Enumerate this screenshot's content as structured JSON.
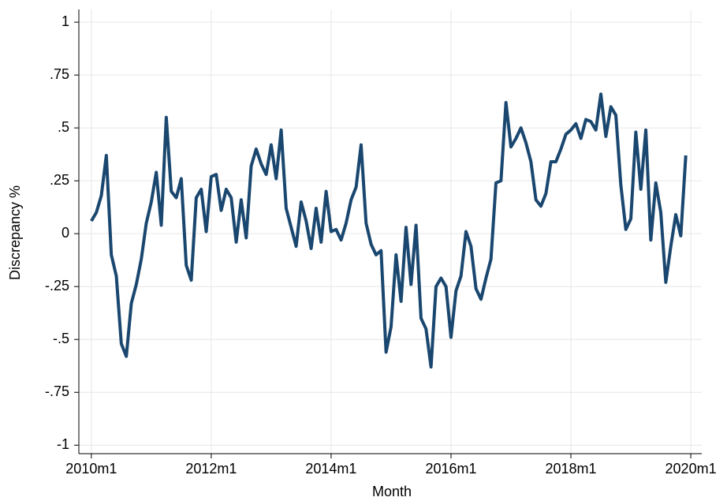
{
  "chart_data": {
    "type": "line",
    "xlabel": "Month",
    "ylabel": "Discrepancy %",
    "x": [
      600,
      601,
      602,
      603,
      604,
      605,
      606,
      607,
      608,
      609,
      610,
      611,
      612,
      613,
      614,
      615,
      616,
      617,
      618,
      619,
      620,
      621,
      622,
      623,
      624,
      625,
      626,
      627,
      628,
      629,
      630,
      631,
      632,
      633,
      634,
      635,
      636,
      637,
      638,
      639,
      640,
      641,
      642,
      643,
      644,
      645,
      646,
      647,
      648,
      649,
      650,
      651,
      652,
      653,
      654,
      655,
      656,
      657,
      658,
      659,
      660,
      661,
      662,
      663,
      664,
      665,
      666,
      667,
      668,
      669,
      670,
      671,
      672,
      673,
      674,
      675,
      676,
      677,
      678,
      679,
      680,
      681,
      682,
      683,
      684,
      685,
      686,
      687,
      688,
      689,
      690,
      691,
      692,
      693,
      694,
      695,
      696,
      697,
      698,
      699,
      700,
      701,
      702,
      703,
      704,
      705,
      706,
      707,
      708,
      709,
      710,
      711,
      712,
      713,
      714,
      715,
      716,
      717,
      718,
      719
    ],
    "series": [
      {
        "color": "#1a476f",
        "values": [
          0.06,
          0.1,
          0.18,
          0.37,
          -0.1,
          -0.2,
          -0.52,
          -0.58,
          -0.33,
          -0.24,
          -0.12,
          0.05,
          0.15,
          0.29,
          0.04,
          0.55,
          0.2,
          0.17,
          0.26,
          -0.15,
          -0.22,
          0.17,
          0.21,
          0.01,
          0.27,
          0.28,
          0.11,
          0.21,
          0.17,
          -0.04,
          0.16,
          -0.02,
          0.32,
          0.4,
          0.33,
          0.28,
          0.42,
          0.26,
          0.49,
          0.12,
          0.03,
          -0.06,
          0.15,
          0.06,
          -0.07,
          0.12,
          -0.04,
          0.2,
          0.01,
          0.02,
          -0.03,
          0.05,
          0.16,
          0.22,
          0.42,
          0.05,
          -0.05,
          -0.1,
          -0.08,
          -0.56,
          -0.44,
          -0.1,
          -0.32,
          0.03,
          -0.24,
          0.04,
          -0.4,
          -0.45,
          -0.63,
          -0.25,
          -0.21,
          -0.25,
          -0.49,
          -0.27,
          -0.2,
          0.01,
          -0.06,
          -0.26,
          -0.31,
          -0.21,
          -0.12,
          0.24,
          0.25,
          0.62,
          0.41,
          0.45,
          0.5,
          0.43,
          0.34,
          0.16,
          0.13,
          0.19,
          0.34,
          0.34,
          0.4,
          0.47,
          0.49,
          0.52,
          0.45,
          0.54,
          0.53,
          0.49,
          0.66,
          0.46,
          0.6,
          0.56,
          0.23,
          0.02,
          0.07,
          0.48,
          0.21,
          0.49,
          -0.03,
          0.24,
          0.1,
          -0.23,
          -0.06,
          0.09,
          -0.01,
          0.37
        ]
      }
    ],
    "xlim": [
      597.5,
      722.2
    ],
    "xticks": [
      {
        "value": 600,
        "label": "2010m1"
      },
      {
        "value": 624,
        "label": "2012m1"
      },
      {
        "value": 648,
        "label": "2014m1"
      },
      {
        "value": 672,
        "label": "2016m1"
      },
      {
        "value": 696,
        "label": "2018m1"
      },
      {
        "value": 720,
        "label": "2020m1"
      }
    ],
    "ylim": [
      -1.04,
      1.06
    ],
    "yticks": [
      1,
      {
        "value": 0.75,
        "label": ".75"
      },
      {
        "value": 0.5,
        "label": ".5"
      },
      {
        "value": 0.25,
        "label": ".25"
      },
      0,
      {
        "value": -0.25,
        "label": "-.25"
      },
      {
        "value": -0.5,
        "label": "-.5"
      },
      {
        "value": -0.75,
        "label": "-.75"
      },
      -1
    ],
    "grid": true
  }
}
